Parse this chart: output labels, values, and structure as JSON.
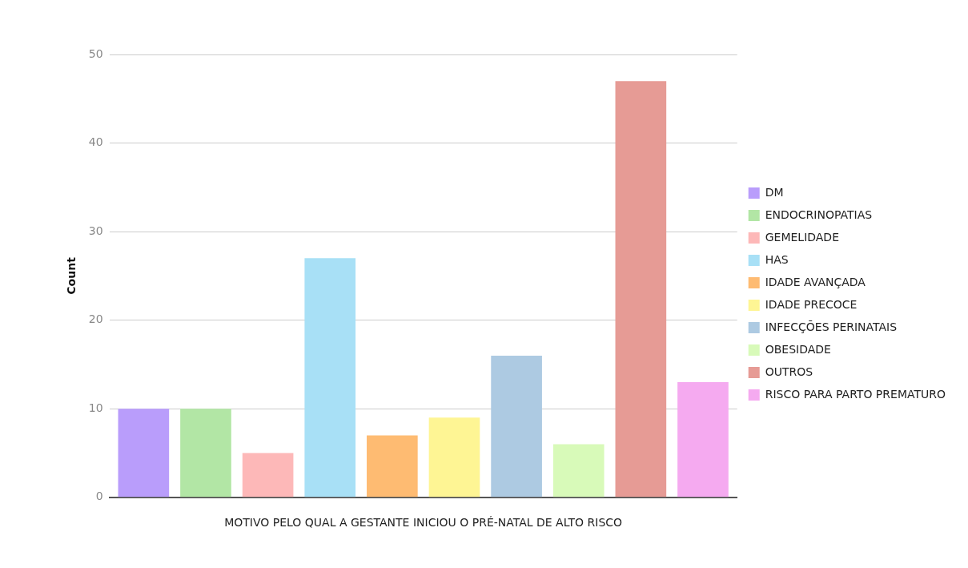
{
  "chart_data": {
    "type": "bar",
    "xlabel": "MOTIVO PELO QUAL A GESTANTE INICIOU O PRÉ-NATAL DE ALTO RISCO",
    "ylabel": "Count",
    "categories": [
      null
    ],
    "series": [
      {
        "name": "DM",
        "color": "#b99dfb",
        "values": [
          10
        ]
      },
      {
        "name": "ENDOCRINOPATIAS",
        "color": "#b2e6a5",
        "values": [
          10
        ]
      },
      {
        "name": "GEMELIDADE",
        "color": "#fdb8b8",
        "values": [
          5
        ]
      },
      {
        "name": "HAS",
        "color": "#a8e0f6",
        "values": [
          27
        ]
      },
      {
        "name": "IDADE AVANÇADA",
        "color": "#febb72",
        "values": [
          7
        ]
      },
      {
        "name": "IDADE PRECOCE",
        "color": "#fef594",
        "values": [
          9
        ]
      },
      {
        "name": "INFECÇÕES PERINATAIS",
        "color": "#adcae2",
        "values": [
          16
        ]
      },
      {
        "name": "OBESIDADE",
        "color": "#d8fab9",
        "values": [
          6
        ]
      },
      {
        "name": "OUTROS",
        "color": "#e69b95",
        "values": [
          47
        ]
      },
      {
        "name": "RISCO PARA PARTO PREMATURO",
        "color": "#f5aaf0",
        "values": [
          13
        ]
      }
    ],
    "ylim": [
      0,
      50
    ],
    "yticks": [
      0,
      10,
      20,
      30,
      40,
      50
    ],
    "grid": "y",
    "legend": "right"
  }
}
